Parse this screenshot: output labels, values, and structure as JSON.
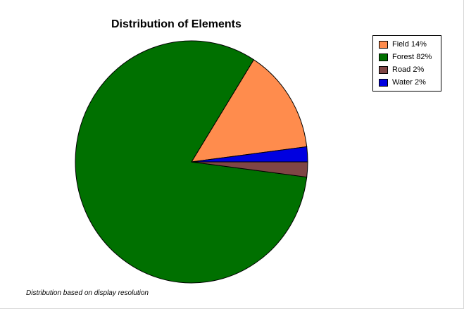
{
  "chart_data": {
    "type": "pie",
    "title": "Distribution of Elements",
    "footnote": "Distribution based on display resolution",
    "legend_position": "top-right",
    "slices": [
      {
        "label": "Field 14%",
        "value": 14,
        "color": "#ff8c4d"
      },
      {
        "label": "Forest 82%",
        "value": 82,
        "color": "#007000"
      },
      {
        "label": "Road 2%",
        "value": 2,
        "color": "#7f4545"
      },
      {
        "label": "Water 2%",
        "value": 2,
        "color": "#0000e0"
      }
    ]
  }
}
